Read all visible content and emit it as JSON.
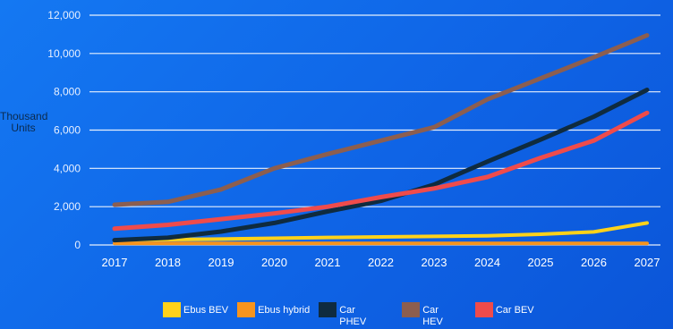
{
  "colors": {
    "grid": "#ffffff",
    "tick_text": "#ffffff",
    "y_tick_text": "#e8f0ff"
  },
  "chart_data": {
    "type": "line",
    "title": "",
    "xlabel": "",
    "ylabel": "Thousand Units",
    "ylim": [
      0,
      12000
    ],
    "yticks": [
      0,
      2000,
      4000,
      6000,
      8000,
      10000,
      12000
    ],
    "ytick_labels": [
      "0",
      "2,000",
      "4,000",
      "6,000",
      "8,000",
      "10,000",
      "12,000"
    ],
    "x": [
      2017,
      2018,
      2019,
      2020,
      2021,
      2022,
      2023,
      2024,
      2025,
      2026,
      2027
    ],
    "x_labels": [
      "2017",
      "2018",
      "2019",
      "2020",
      "2021",
      "2022",
      "2023",
      "2024",
      "2025",
      "2026",
      "2027"
    ],
    "grid": "horizontal",
    "legend_position": "bottom",
    "series": [
      {
        "name": "Ebus BEV",
        "color": "#ffd21a",
        "width": 4,
        "values": [
          250,
          280,
          310,
          350,
          390,
          420,
          450,
          480,
          560,
          680,
          1150
        ]
      },
      {
        "name": "Ebus hybrid",
        "color": "#f7941d",
        "width": 4,
        "values": [
          80,
          80,
          80,
          80,
          80,
          80,
          80,
          80,
          80,
          80,
          80
        ]
      },
      {
        "name": "Car\nPHEV",
        "color": "#0f2b3f",
        "width": 5,
        "values": [
          250,
          380,
          700,
          1150,
          1750,
          2300,
          3150,
          4350,
          5500,
          6700,
          8100
        ]
      },
      {
        "name": "Car\nHEV",
        "color": "#8c5e4f",
        "width": 5,
        "values": [
          2100,
          2250,
          2900,
          4000,
          4750,
          5450,
          6150,
          7600,
          8700,
          9800,
          10950
        ]
      },
      {
        "name": "Car BEV",
        "color": "#ef4b4b",
        "width": 5,
        "values": [
          850,
          1050,
          1350,
          1650,
          2000,
          2500,
          2950,
          3550,
          4550,
          5450,
          6900
        ]
      }
    ]
  }
}
